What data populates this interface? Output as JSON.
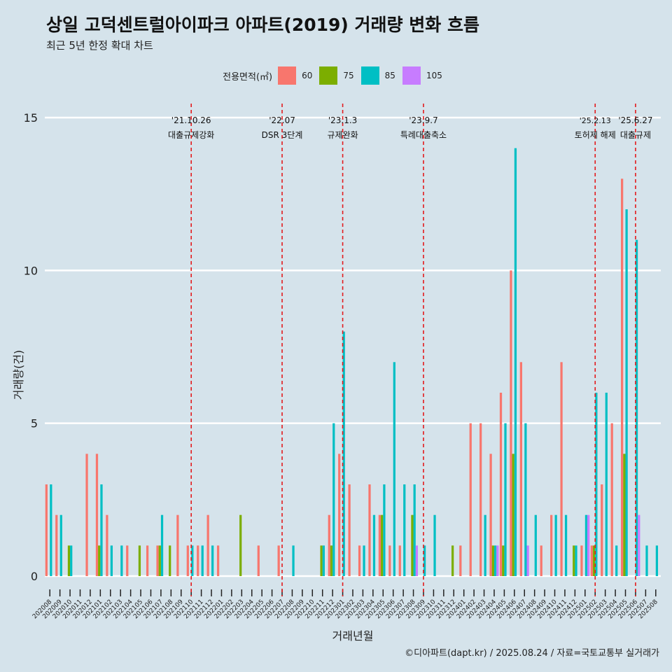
{
  "header": {
    "title": "상일 고덕센트럴아이파크 아파트(2019) 거래량 변화 흐름",
    "subtitle": "최근 5년 한정 확대 차트"
  },
  "legend": {
    "title": "전용면적(㎡)",
    "items": [
      {
        "label": "60",
        "color": "#f8766d"
      },
      {
        "label": "75",
        "color": "#7cae00"
      },
      {
        "label": "85",
        "color": "#00bfc4"
      },
      {
        "label": "105",
        "color": "#c77cff"
      }
    ]
  },
  "caption": "©디아파트(dapt.kr) / 2025.08.24 / 자료=국토교통부 실거래가",
  "chart_data": {
    "type": "bar",
    "title": "상일 고덕센트럴아이파크 아파트(2019) 거래량 변화 흐름",
    "xlabel": "거래년월",
    "ylabel": "거래량(건)",
    "ylim": [
      0,
      15
    ],
    "yticks": [
      0,
      5,
      10,
      15
    ],
    "grid": true,
    "legend_position": "top",
    "categories": [
      "202008",
      "202009",
      "202010",
      "202011",
      "202012",
      "202101",
      "202102",
      "202103",
      "202104",
      "202105",
      "202106",
      "202107",
      "202108",
      "202109",
      "202110",
      "202111",
      "202112",
      "202201",
      "202202",
      "202203",
      "202204",
      "202205",
      "202206",
      "202207",
      "202208",
      "202209",
      "202210",
      "202211",
      "202212",
      "202301",
      "202302",
      "202303",
      "202304",
      "202305",
      "202306",
      "202307",
      "202308",
      "202309",
      "202310",
      "202311",
      "202312",
      "202401",
      "202402",
      "202403",
      "202404",
      "202405",
      "202406",
      "202407",
      "202408",
      "202409",
      "202410",
      "202411",
      "202412",
      "202501",
      "202502",
      "202503",
      "202504",
      "202505",
      "202506",
      "202507",
      "202508"
    ],
    "series": [
      {
        "name": "60",
        "color": "#f8766d",
        "values": [
          3,
          2,
          0,
          0,
          4,
          4,
          2,
          0,
          1,
          0,
          1,
          1,
          0,
          2,
          1,
          1,
          2,
          1,
          0,
          0,
          0,
          1,
          0,
          1,
          0,
          0,
          0,
          0,
          2,
          4,
          3,
          1,
          3,
          2,
          1,
          1,
          0,
          0,
          0,
          0,
          0,
          1,
          5,
          5,
          4,
          6,
          10,
          7,
          0,
          1,
          2,
          7,
          0,
          1,
          1,
          3,
          5,
          13,
          0,
          0,
          0
        ]
      },
      {
        "name": "75",
        "color": "#7cae00",
        "values": [
          0,
          0,
          1,
          0,
          0,
          1,
          0,
          0,
          0,
          1,
          0,
          1,
          1,
          0,
          0,
          0,
          0,
          0,
          0,
          2,
          0,
          0,
          0,
          0,
          0,
          0,
          0,
          1,
          1,
          0,
          0,
          0,
          0,
          2,
          0,
          0,
          2,
          0,
          0,
          0,
          1,
          0,
          0,
          0,
          1,
          1,
          4,
          0,
          0,
          0,
          0,
          0,
          1,
          0,
          1,
          0,
          0,
          4,
          0,
          0,
          0
        ]
      },
      {
        "name": "85",
        "color": "#00bfc4",
        "values": [
          3,
          2,
          1,
          0,
          0,
          3,
          1,
          1,
          0,
          0,
          0,
          2,
          0,
          0,
          1,
          1,
          1,
          0,
          0,
          0,
          0,
          0,
          0,
          0,
          1,
          0,
          0,
          1,
          5,
          8,
          0,
          1,
          2,
          3,
          7,
          3,
          3,
          1,
          2,
          0,
          0,
          0,
          0,
          2,
          1,
          5,
          14,
          5,
          2,
          0,
          2,
          2,
          1,
          2,
          6,
          6,
          1,
          12,
          11,
          1,
          1
        ]
      },
      {
        "name": "105",
        "color": "#c77cff",
        "values": [
          0,
          0,
          0,
          0,
          0,
          0,
          0,
          0,
          0,
          0,
          0,
          0,
          0,
          0,
          0,
          0,
          0,
          0,
          0,
          0,
          0,
          0,
          0,
          0,
          0,
          0,
          0,
          0,
          0,
          0,
          0,
          0,
          0,
          0,
          0,
          0,
          1,
          0,
          0,
          0,
          0,
          0,
          0,
          0,
          1,
          0,
          0,
          1,
          0,
          0,
          0,
          0,
          0,
          2,
          0,
          0,
          0,
          0,
          2,
          0,
          0
        ]
      }
    ],
    "annotations": [
      {
        "at": "202110",
        "date": "'21.10.26",
        "label": "대출규제강화"
      },
      {
        "at": "202207",
        "date": "'22.07",
        "label": "DSR 3단계"
      },
      {
        "at": "202301",
        "date": "'23.1.3",
        "label": "규제완화"
      },
      {
        "at": "202309",
        "date": "'23.9.7",
        "label": "특례대출축소"
      },
      {
        "at": "202502",
        "date": "'25.2.13",
        "label": "토허제 해제"
      },
      {
        "at": "202506",
        "date": "'25.6.27",
        "label": "대출규제"
      }
    ]
  }
}
